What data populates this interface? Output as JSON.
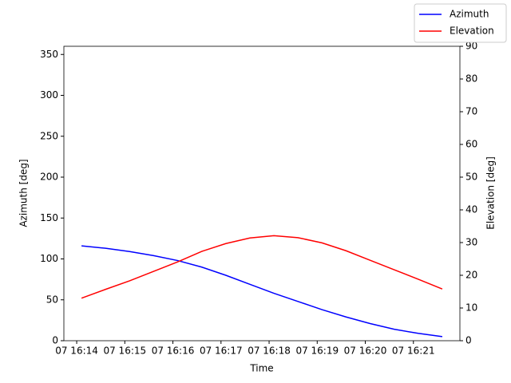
{
  "chart_data": {
    "type": "line",
    "x": [
      "16:14:06",
      "16:14:36",
      "16:15:06",
      "16:15:36",
      "16:16:06",
      "16:16:36",
      "16:17:06",
      "16:17:36",
      "16:18:06",
      "16:18:36",
      "16:19:06",
      "16:19:36",
      "16:20:06",
      "16:20:36",
      "16:21:06",
      "16:21:36"
    ],
    "xlabel": "Time",
    "ylabel": "Azimuth [deg]",
    "y2label": "Elevation [deg]",
    "xlim": [
      "16:13:44",
      "16:21:58"
    ],
    "xticks": [
      {
        "value": "16:14:00",
        "label": "07 16:14"
      },
      {
        "value": "16:15:00",
        "label": "07 16:15"
      },
      {
        "value": "16:16:00",
        "label": "07 16:16"
      },
      {
        "value": "16:17:00",
        "label": "07 16:17"
      },
      {
        "value": "16:18:00",
        "label": "07 16:18"
      },
      {
        "value": "16:19:00",
        "label": "07 16:19"
      },
      {
        "value": "16:20:00",
        "label": "07 16:20"
      },
      {
        "value": "16:21:00",
        "label": "07 16:21"
      }
    ],
    "ylim": [
      0,
      360
    ],
    "yticks": [
      0,
      50,
      100,
      150,
      200,
      250,
      300,
      350
    ],
    "y2lim": [
      0,
      90
    ],
    "y2ticks": [
      0,
      10,
      20,
      30,
      40,
      50,
      60,
      70,
      80,
      90
    ],
    "legend": "upper right",
    "series": [
      {
        "name": "Azimuth",
        "color": "#0000ff",
        "values": [
          116,
          113,
          109,
          104,
          98,
          90,
          80,
          69,
          58,
          48,
          38,
          29,
          21,
          14,
          9,
          5
        ]
      },
      {
        "name": "Elevation",
        "color": "#ff0000",
        "axis": "y2",
        "values": [
          13,
          15.7,
          18.3,
          21.2,
          24.1,
          27.3,
          29.7,
          31.4,
          32.1,
          31.5,
          29.9,
          27.5,
          24.6,
          21.7,
          18.8,
          15.8
        ]
      }
    ]
  }
}
